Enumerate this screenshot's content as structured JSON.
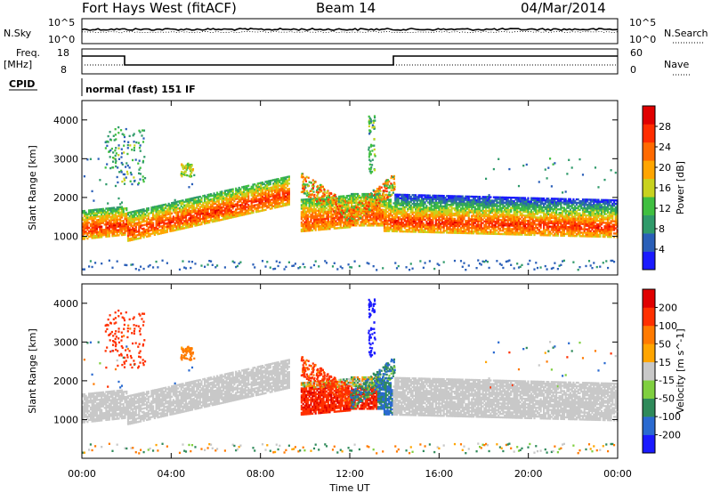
{
  "header": {
    "station": "Fort Hays West (fitACF)",
    "beam": "Beam 14",
    "date": "04/Mar/2014"
  },
  "top_panels": {
    "nsky": {
      "label": "N.Sky",
      "tick_top": "10^5",
      "tick_bottom": "10^0",
      "right_label": "N.Search",
      "right_tick_top": "10^5",
      "right_tick_bottom": "10^0"
    },
    "freq": {
      "label_line1": "Freq.",
      "label_line2": "[MHz]",
      "tick_top": "18",
      "tick_bottom": "8",
      "right_label": "Nave",
      "right_tick_top": "60",
      "right_tick_bottom": "0"
    },
    "cpid": {
      "label": "CPID",
      "text": "normal (fast) 151 IF"
    }
  },
  "chart_data": [
    {
      "type": "heatmap",
      "ylabel": "Slant Range [km]",
      "yticks": [
        "1000",
        "2000",
        "3000",
        "4000"
      ],
      "ylim": [
        0,
        4500
      ],
      "xlim": [
        0,
        24
      ],
      "colorbar": {
        "label": "Power [dB]",
        "ticks": [
          "4",
          "8",
          "12",
          "16",
          "20",
          "24",
          "28"
        ],
        "colors": [
          "#1a1aff",
          "#2a5fb8",
          "#2f9a6a",
          "#3fbf40",
          "#c8d21e",
          "#ffa500",
          "#ff6a00",
          "#ff2d00",
          "#e00000"
        ]
      }
    },
    {
      "type": "heatmap",
      "ylabel": "Slant Range [km]",
      "yticks": [
        "1000",
        "2000",
        "3000",
        "4000"
      ],
      "ylim": [
        0,
        4500
      ],
      "xlim": [
        0,
        24
      ],
      "colorbar": {
        "label": "Velocity [m s^-1]",
        "ticks": [
          "200",
          "100",
          "50",
          "15",
          "-15",
          "-50",
          "-100",
          "-200"
        ],
        "colors": [
          "#1a1aff",
          "#2a6ad0",
          "#2f8a5a",
          "#7fcf3f",
          "#c8c8c8",
          "#ffa500",
          "#ff7a00",
          "#ff3000",
          "#e00000"
        ]
      }
    }
  ],
  "xaxis": {
    "label": "Time UT",
    "ticks": [
      "00:00",
      "04:00",
      "08:00",
      "12:00",
      "16:00",
      "20:00",
      "00:00"
    ]
  }
}
